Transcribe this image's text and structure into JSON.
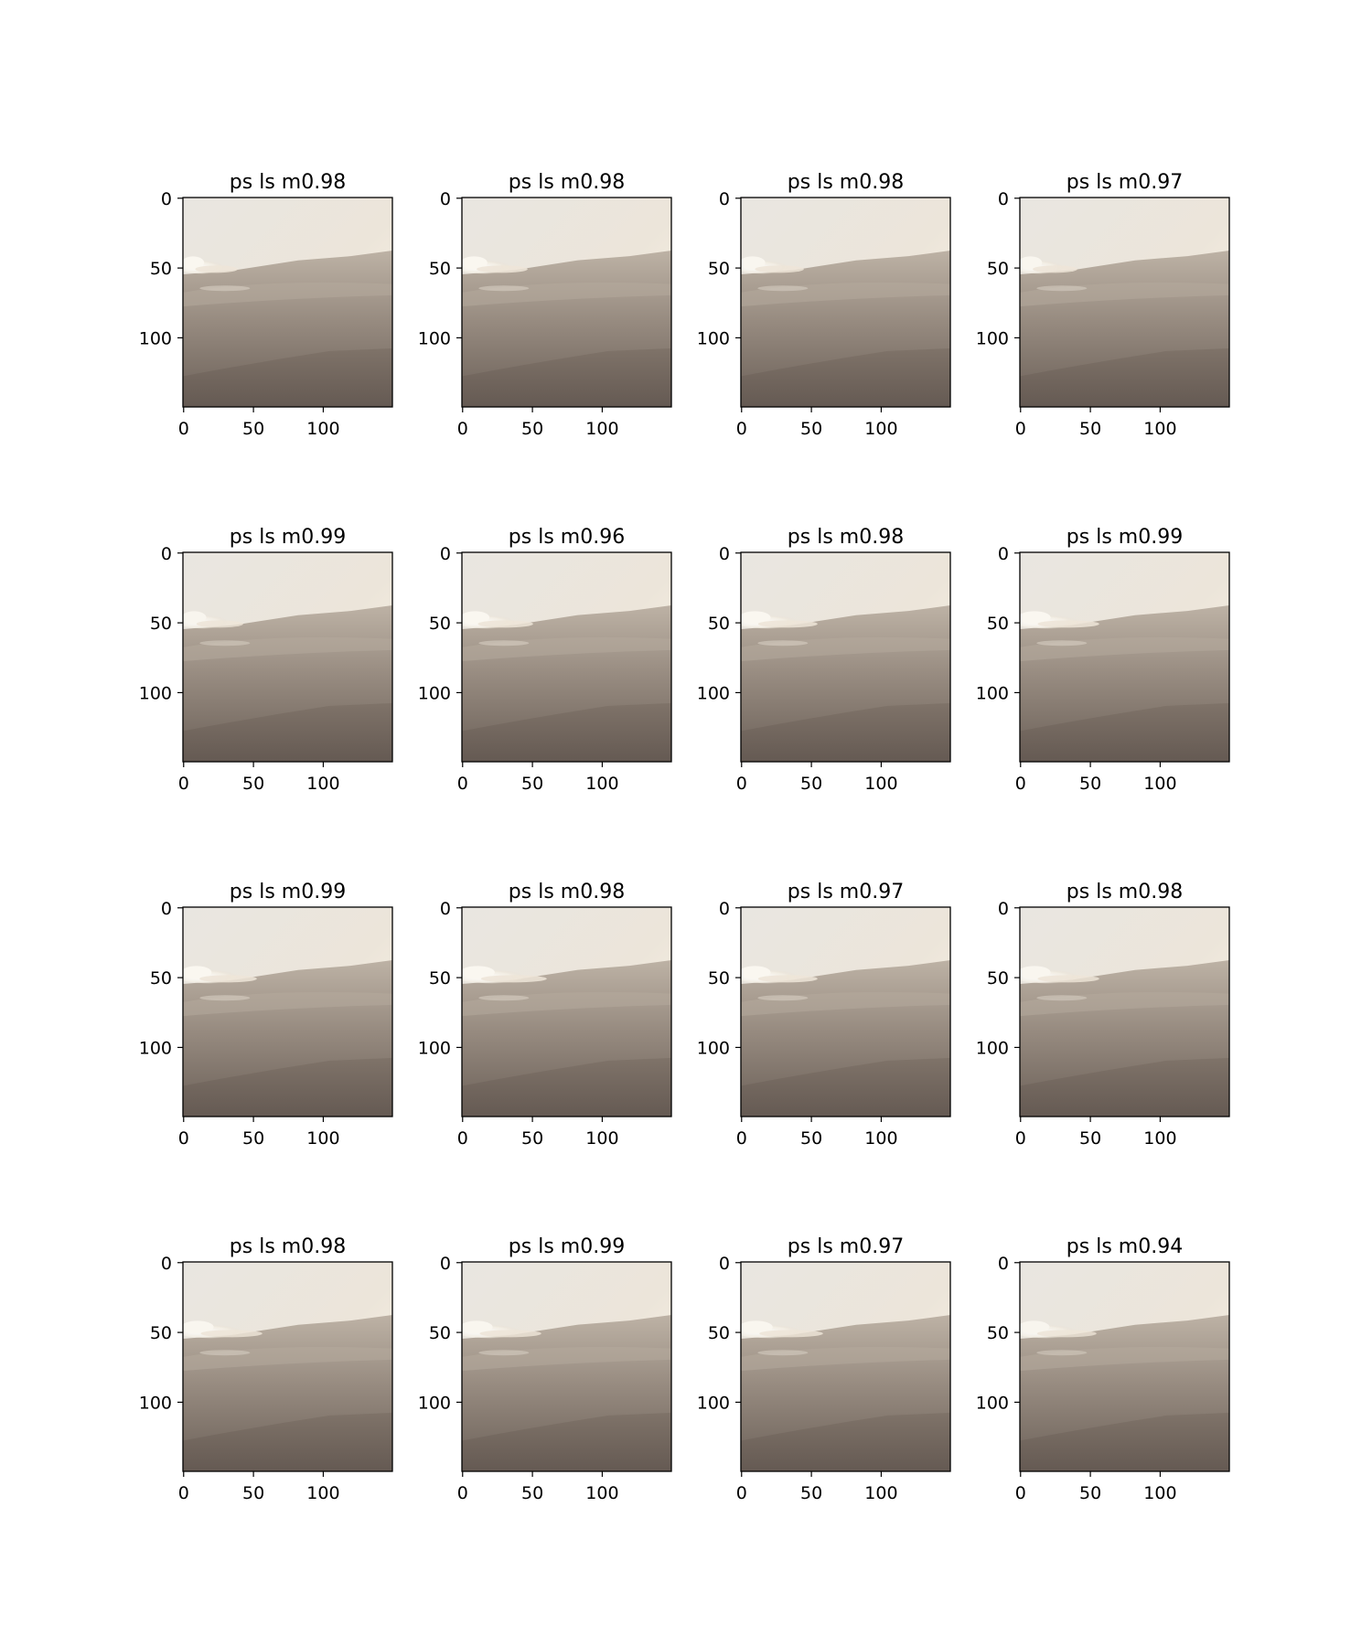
{
  "figure": {
    "panels": [
      {
        "title": "ps ls m0.98",
        "cloud": [
          40,
          0.95
        ]
      },
      {
        "title": "ps ls m0.98",
        "cloud": [
          48,
          0.95
        ]
      },
      {
        "title": "ps ls m0.98",
        "cloud": [
          46,
          0.9
        ]
      },
      {
        "title": "ps ls m0.97",
        "cloud": [
          42,
          0.9
        ]
      },
      {
        "title": "ps ls m0.99",
        "cloud": [
          44,
          0.85
        ]
      },
      {
        "title": "ps ls m0.96",
        "cloud": [
          52,
          0.95
        ]
      },
      {
        "title": "ps ls m0.98",
        "cloud": [
          56,
          0.95
        ]
      },
      {
        "title": "ps ls m0.99",
        "cloud": [
          58,
          0.95
        ]
      },
      {
        "title": "ps ls m0.99",
        "cloud": [
          54,
          0.95
        ]
      },
      {
        "title": "ps ls m0.98",
        "cloud": [
          62,
          0.95
        ]
      },
      {
        "title": "ps ls m0.97",
        "cloud": [
          56,
          0.95
        ]
      },
      {
        "title": "ps ls m0.98",
        "cloud": [
          58,
          0.9
        ]
      },
      {
        "title": "ps ls m0.98",
        "cloud": [
          58,
          0.9
        ]
      },
      {
        "title": "ps ls m0.99",
        "cloud": [
          58,
          0.9
        ]
      },
      {
        "title": "ps ls m0.97",
        "cloud": [
          60,
          0.9
        ]
      },
      {
        "title": "ps ls m0.94",
        "cloud": [
          56,
          0.85
        ]
      }
    ],
    "ticks": {
      "x": [
        "0",
        "50",
        "100"
      ],
      "y": [
        "0",
        "50",
        "100"
      ]
    },
    "colors": {
      "axis": "#000000",
      "sky_top": "#ddd9d2",
      "sky_bright": "#fff8e8",
      "haze": "#c8bfb2",
      "ground_mid": "#9a8f84",
      "ground_dark": "#6d6259",
      "cloud": "#f7f3ea"
    }
  }
}
